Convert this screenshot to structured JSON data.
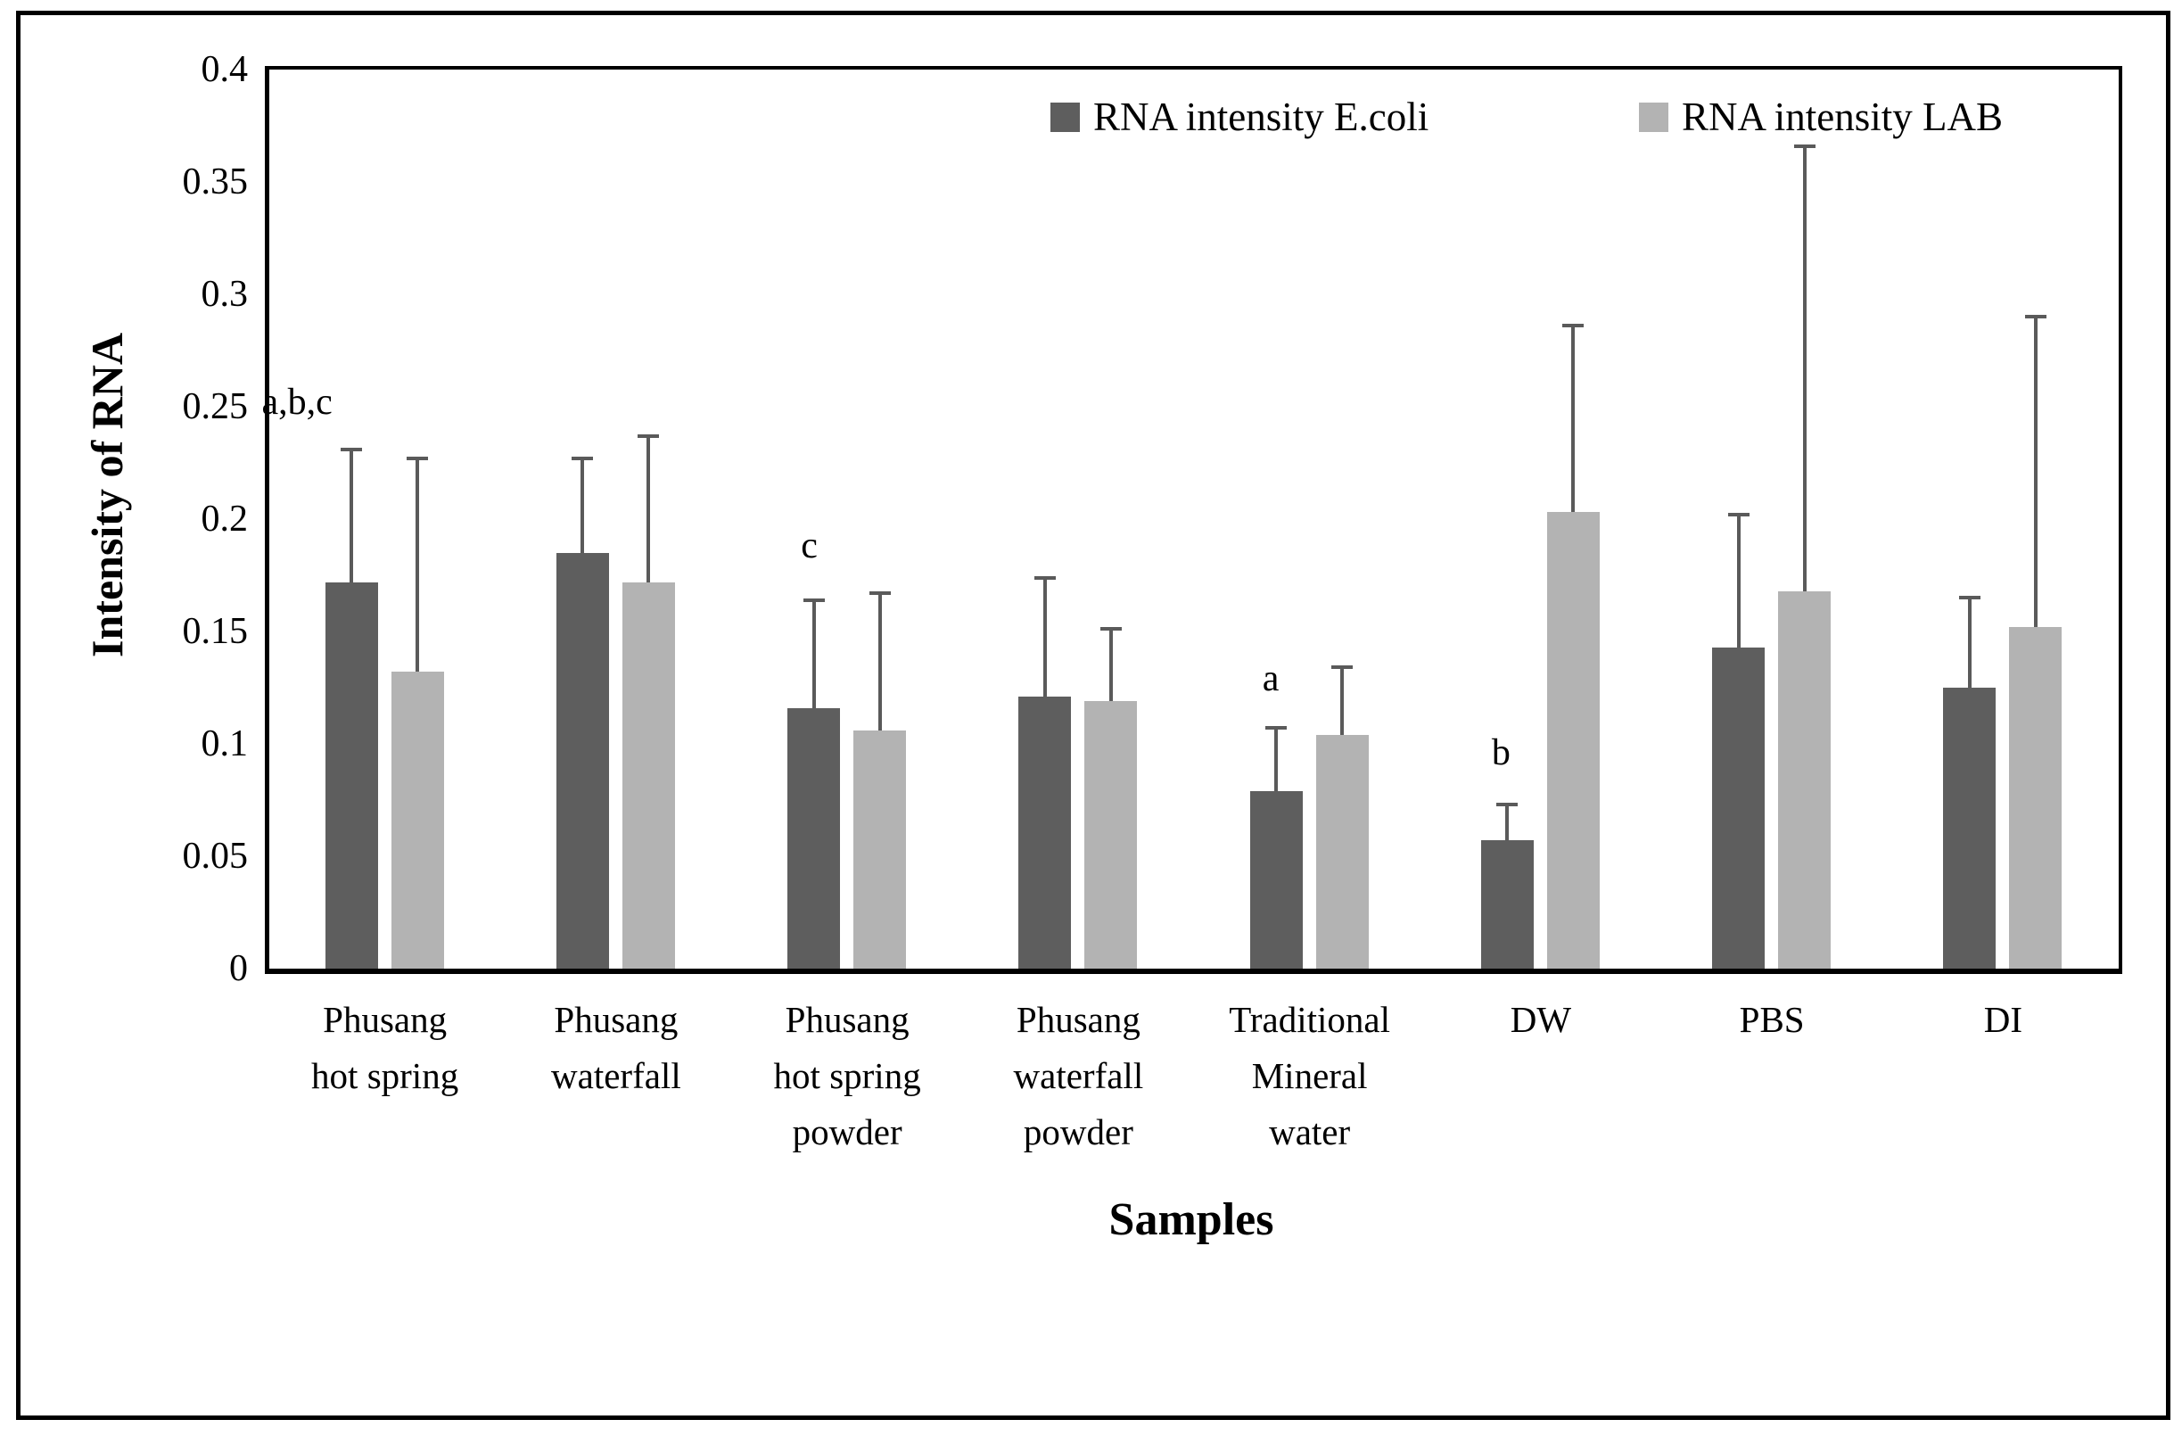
{
  "figure": {
    "legend": {
      "items": [
        {
          "label": "RNA intensity E.coli",
          "color": "#5e5e5e"
        },
        {
          "label": "RNA intensity LAB",
          "color": "#b3b3b3"
        }
      ]
    }
  },
  "chart_data": {
    "type": "bar",
    "title": "",
    "xlabel": "Samples",
    "ylabel": "Intensity of RNA",
    "ylim": [
      0,
      0.4
    ],
    "ytick_labels": [
      "0.4",
      "0.35",
      "0.3",
      "0.25",
      "0.2",
      "0.15",
      "0.1",
      "0.05",
      "0"
    ],
    "grid": false,
    "legend_position": "top-inside",
    "error_bar_color": "#5a5a5a",
    "categories": [
      "Phusang hot spring",
      "Phusang waterfall",
      "Phusang hot spring powder",
      "Phusang waterfall powder",
      "Traditional Mineral water",
      "DW",
      "PBS",
      "DI"
    ],
    "category_lines": [
      [
        "Phusang",
        "hot spring"
      ],
      [
        "Phusang",
        "waterfall"
      ],
      [
        "Phusang",
        "hot spring",
        "powder"
      ],
      [
        "Phusang",
        "waterfall",
        "powder"
      ],
      [
        "Traditional",
        "Mineral",
        "water"
      ],
      [
        "DW"
      ],
      [
        "PBS"
      ],
      [
        "DI"
      ]
    ],
    "series": [
      {
        "name": "RNA intensity E.coli",
        "color": "#5e5e5e",
        "values": [
          0.172,
          0.185,
          0.116,
          0.121,
          0.079,
          0.057,
          0.143,
          0.125
        ],
        "errors_upper": [
          0.059,
          0.042,
          0.048,
          0.053,
          0.028,
          0.016,
          0.059,
          0.04
        ]
      },
      {
        "name": "RNA intensity LAB",
        "color": "#b3b3b3",
        "values": [
          0.132,
          0.172,
          0.106,
          0.119,
          0.104,
          0.203,
          0.168,
          0.152
        ],
        "errors_upper": [
          0.095,
          0.065,
          0.061,
          0.032,
          0.03,
          0.083,
          0.198,
          0.138
        ]
      }
    ],
    "annotations": [
      {
        "text": "a,b,c",
        "category_index": 0,
        "y": 0.252,
        "dx": -61
      },
      {
        "text": "c",
        "category_index": 2,
        "y": 0.188,
        "dx": -5
      },
      {
        "text": "a",
        "category_index": 4,
        "y": 0.129,
        "dx": -6
      },
      {
        "text": "b",
        "category_index": 5,
        "y": 0.096,
        "dx": -7
      }
    ]
  }
}
